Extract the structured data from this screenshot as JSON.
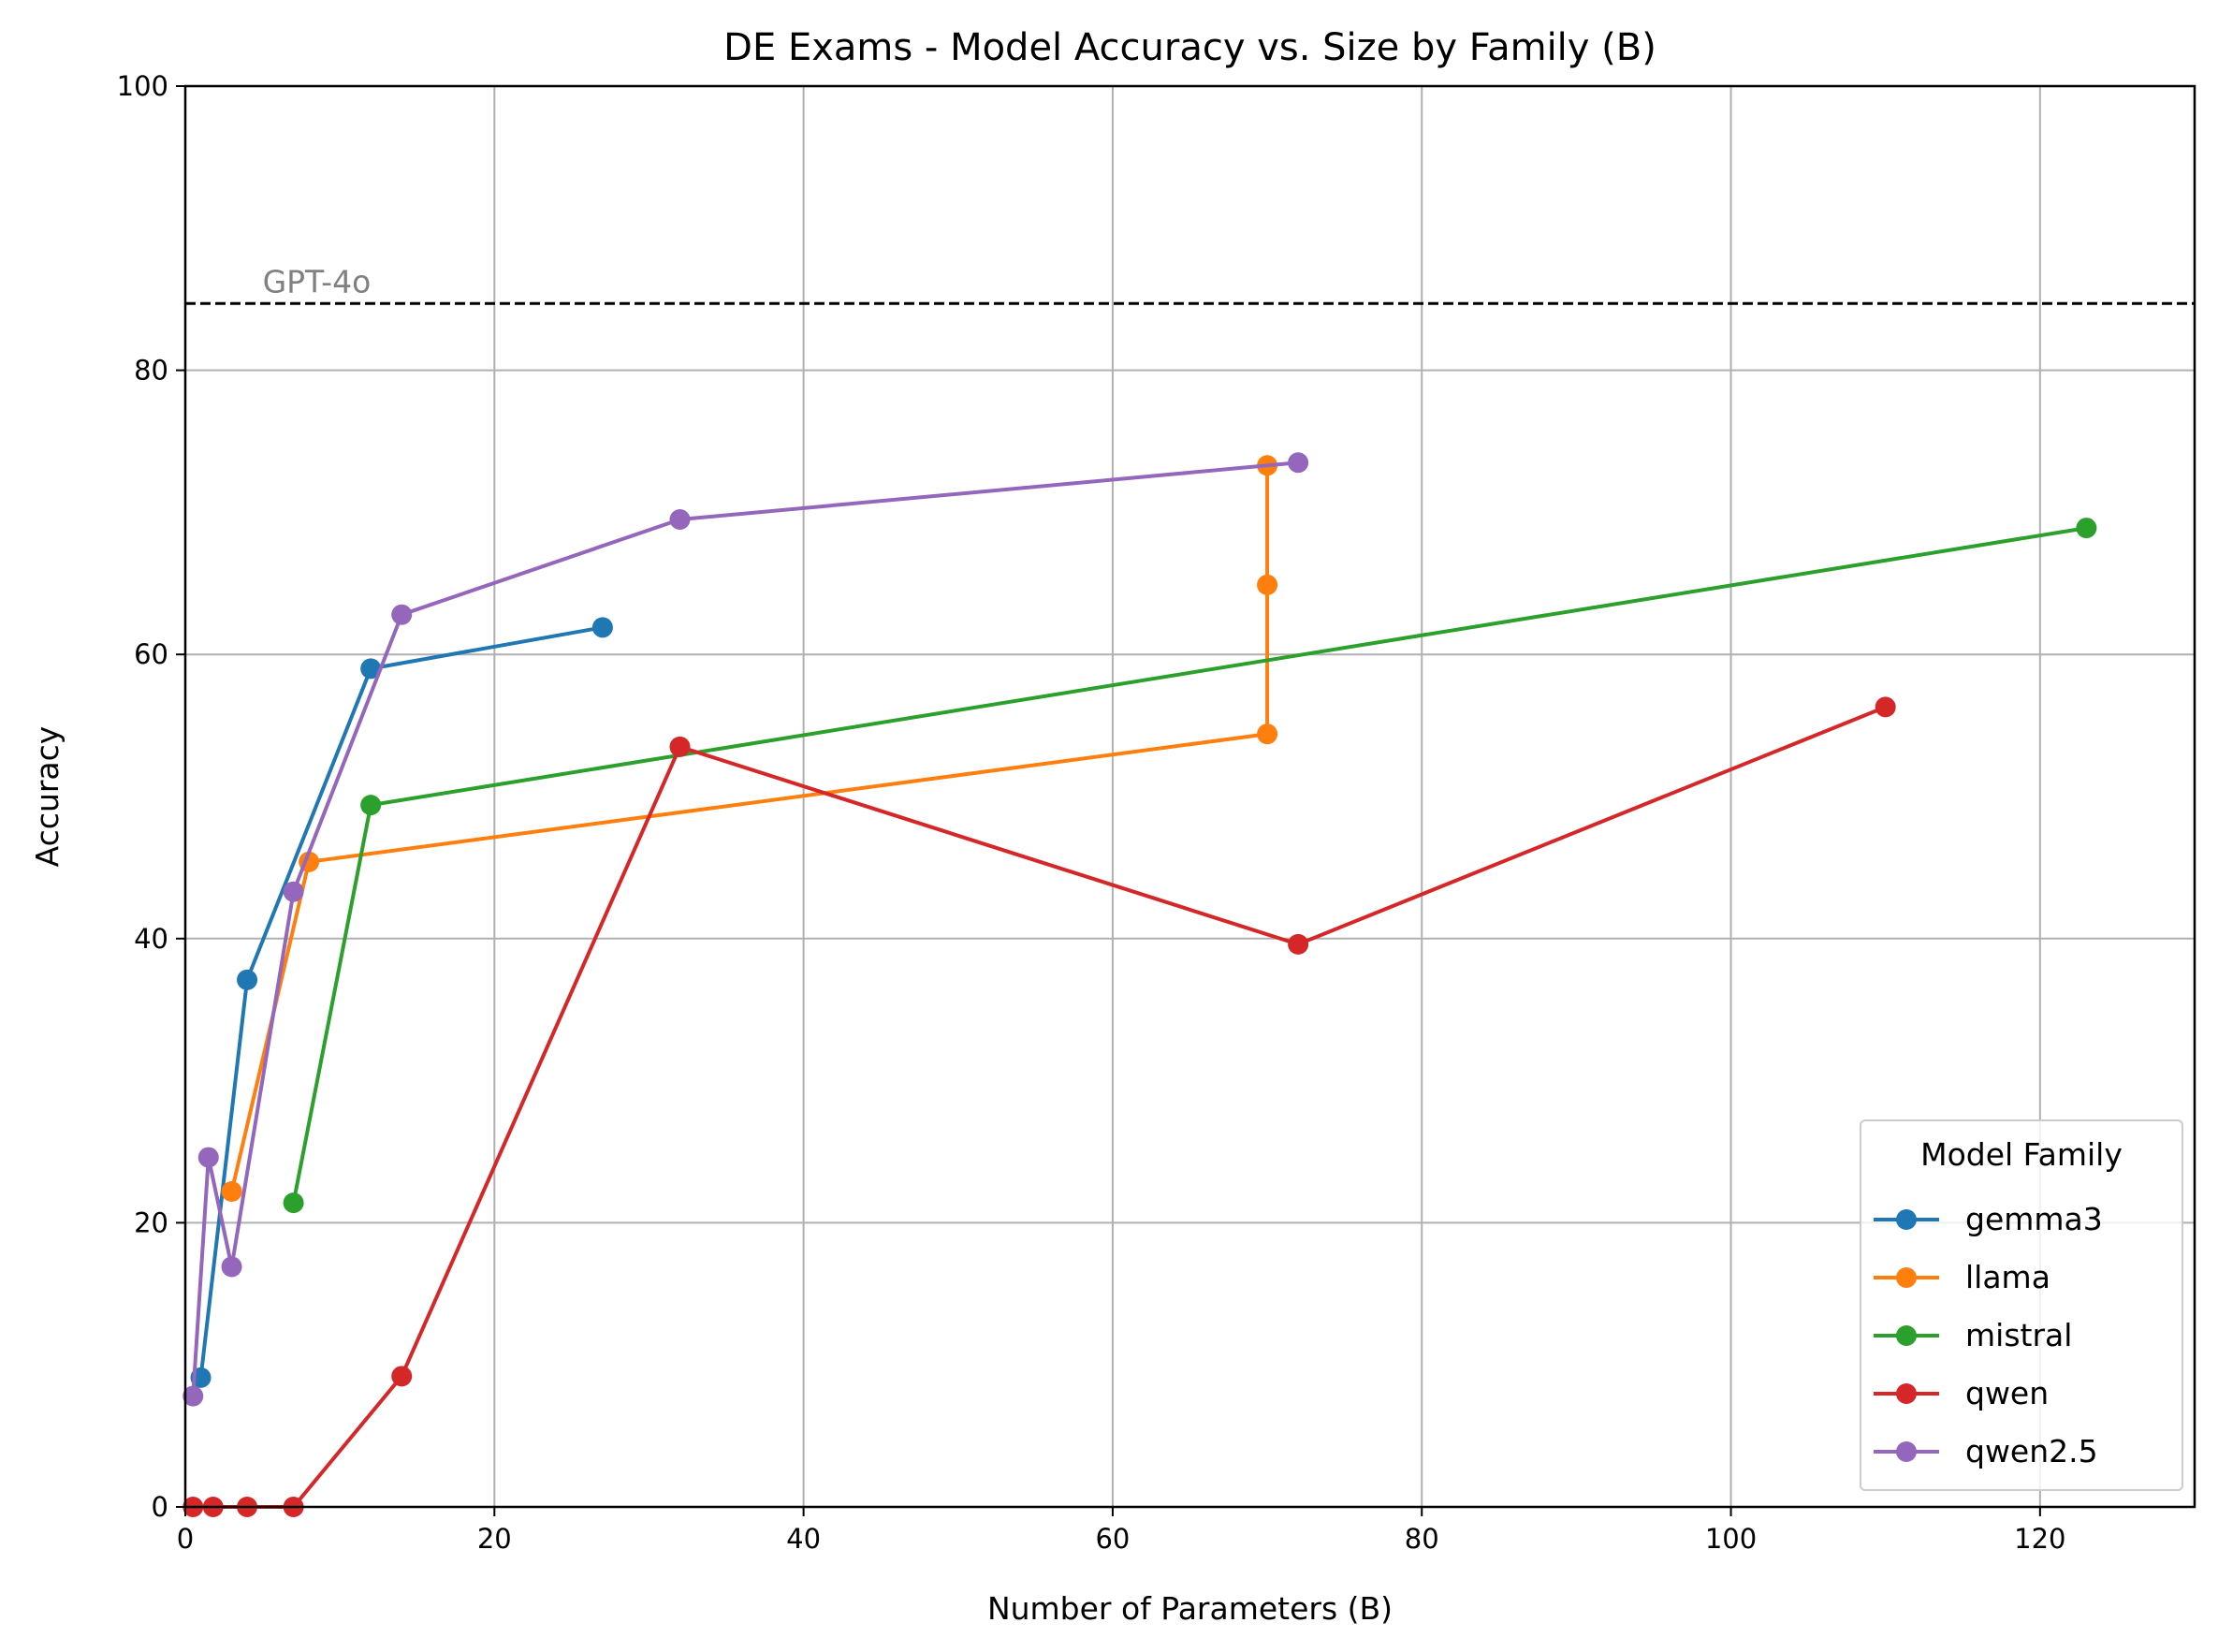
{
  "chart_data": {
    "type": "line",
    "title": "DE Exams - Model Accuracy vs. Size by Family (B)",
    "xlabel": "Number of Parameters (B)",
    "ylabel": "Accuracy",
    "xlim": [
      0,
      130
    ],
    "ylim": [
      0,
      100
    ],
    "x_ticks": [
      0,
      20,
      40,
      60,
      80,
      100,
      120
    ],
    "y_ticks": [
      0,
      20,
      40,
      60,
      80,
      100
    ],
    "grid": true,
    "legend": {
      "title": "Model Family",
      "placement": "lower-right"
    },
    "reference_line": {
      "label": "GPT-4o",
      "y": 84.7,
      "style": "dashed",
      "color": "#000000",
      "label_color": "#808080"
    },
    "series": [
      {
        "name": "gemma3",
        "color": "#1f77b4",
        "points": [
          [
            1,
            9.1
          ],
          [
            4,
            37.1
          ],
          [
            12,
            59.0
          ],
          [
            27,
            61.9
          ]
        ]
      },
      {
        "name": "llama",
        "color": "#ff7f0e",
        "points": [
          [
            3,
            22.2
          ],
          [
            8,
            45.4
          ],
          [
            70,
            54.4
          ],
          [
            70,
            64.9
          ],
          [
            70,
            73.3
          ]
        ]
      },
      {
        "name": "mistral",
        "color": "#2ca02c",
        "points": [
          [
            7,
            21.4
          ],
          [
            12,
            49.4
          ],
          [
            123,
            68.9
          ]
        ]
      },
      {
        "name": "qwen",
        "color": "#d62728",
        "points": [
          [
            0.5,
            0
          ],
          [
            1.8,
            0
          ],
          [
            4,
            0
          ],
          [
            7,
            0
          ],
          [
            14,
            9.2
          ],
          [
            32,
            53.5
          ],
          [
            72,
            39.6
          ],
          [
            110,
            56.3
          ]
        ]
      },
      {
        "name": "qwen2.5",
        "color": "#9467bd",
        "points": [
          [
            0.5,
            7.8
          ],
          [
            1.5,
            24.6
          ],
          [
            3,
            16.9
          ],
          [
            7,
            43.3
          ],
          [
            14,
            62.8
          ],
          [
            32,
            69.5
          ],
          [
            72,
            73.5
          ]
        ]
      }
    ]
  }
}
